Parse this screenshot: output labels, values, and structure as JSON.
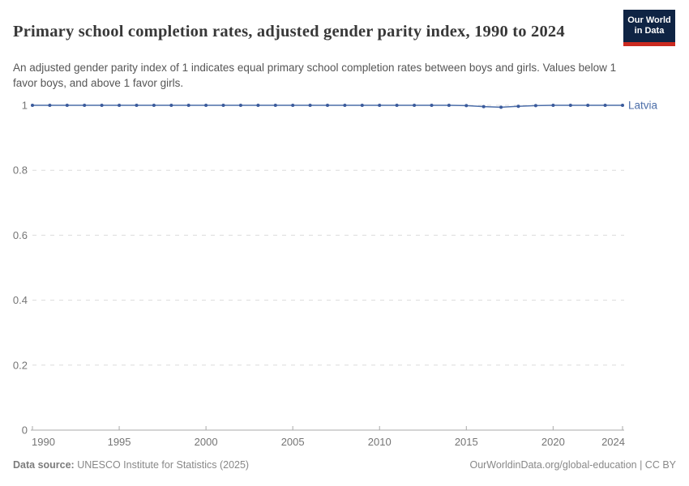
{
  "header": {
    "title": "Primary school completion rates, adjusted gender parity index, 1990 to 2024",
    "subtitle": "An adjusted gender parity index of 1 indicates equal primary school completion rates between boys and girls. Values below 1 favor boys, and above 1 favor girls.",
    "logo": {
      "line1": "Our World",
      "line2": "in Data"
    }
  },
  "chart_data": {
    "type": "line",
    "title": "Primary school completion rates, adjusted gender parity index, 1990 to 2024",
    "xlabel": "",
    "ylabel": "",
    "xlim": [
      1990,
      2024
    ],
    "ylim": [
      0,
      1
    ],
    "x_ticks": [
      1990,
      1995,
      2000,
      2005,
      2010,
      2015,
      2020,
      2024
    ],
    "y_ticks": [
      0,
      0.2,
      0.4,
      0.6,
      0.8,
      1
    ],
    "y_tick_labels": [
      "0",
      "0.2",
      "0.4",
      "0.6",
      "0.8",
      "1"
    ],
    "grid": "horizontal-dashed",
    "legend_position": "end-of-line",
    "x": [
      1990,
      1991,
      1992,
      1993,
      1994,
      1995,
      1996,
      1997,
      1998,
      1999,
      2000,
      2001,
      2002,
      2003,
      2004,
      2005,
      2006,
      2007,
      2008,
      2009,
      2010,
      2011,
      2012,
      2013,
      2014,
      2015,
      2016,
      2017,
      2018,
      2019,
      2020,
      2021,
      2022,
      2023,
      2024
    ],
    "series": [
      {
        "name": "Latvia",
        "color": "#4c6ea9",
        "values": [
          1.0,
          1.0,
          1.0,
          1.0,
          1.0,
          1.0,
          1.0,
          1.0,
          1.0,
          1.0,
          1.0,
          1.0,
          1.0,
          1.0,
          1.0,
          1.0,
          1.0,
          1.0,
          1.0,
          1.0,
          1.0,
          1.0,
          1.0,
          1.0,
          1.0,
          0.999,
          0.996,
          0.994,
          0.997,
          0.999,
          1.0,
          1.0,
          1.0,
          1.0,
          1.0
        ]
      }
    ]
  },
  "colors": {
    "line": "#4c6ea9",
    "point": "#3a5a9b",
    "entity_label": "#4c6ea9",
    "grid": "#dcdcdc",
    "axis": "#a9a9a9",
    "tick_label": "#757575"
  },
  "footer": {
    "datasource_label": "Data source:",
    "datasource": "UNESCO Institute for Statistics (2025)",
    "link": "OurWorldinData.org/global-education | CC BY"
  }
}
